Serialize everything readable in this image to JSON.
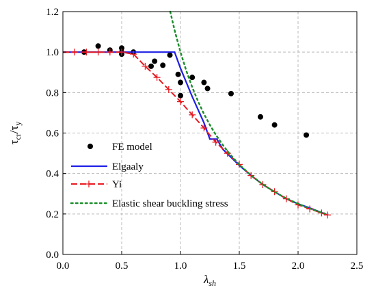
{
  "chart_data": {
    "type": "line",
    "xlabel": "λsh",
    "ylabel": "τcr/τy",
    "xlim": [
      0.0,
      2.5
    ],
    "ylim": [
      0.0,
      1.2
    ],
    "xticks": [
      "0.0",
      "0.5",
      "1.0",
      "1.5",
      "2.0",
      "2.5"
    ],
    "yticks": [
      "0.0",
      "0.2",
      "0.4",
      "0.6",
      "0.8",
      "1.0",
      "1.2"
    ],
    "grid": "dashed",
    "legend_position": "lower-left",
    "series": [
      {
        "name": "FE model",
        "kind": "scatter",
        "color": "#000000",
        "points": [
          [
            0.18,
            1.0
          ],
          [
            0.3,
            1.03
          ],
          [
            0.4,
            1.01
          ],
          [
            0.5,
            1.02
          ],
          [
            0.5,
            1.0
          ],
          [
            0.5,
            0.99
          ],
          [
            0.6,
            1.0
          ],
          [
            0.75,
            0.93
          ],
          [
            0.78,
            0.955
          ],
          [
            0.85,
            0.935
          ],
          [
            0.91,
            0.985
          ],
          [
            0.98,
            0.89
          ],
          [
            1.0,
            0.785
          ],
          [
            1.0,
            0.85
          ],
          [
            1.1,
            0.875
          ],
          [
            1.2,
            0.85
          ],
          [
            1.23,
            0.82
          ],
          [
            1.43,
            0.795
          ],
          [
            1.68,
            0.68
          ],
          [
            1.8,
            0.64
          ],
          [
            2.07,
            0.59
          ]
        ]
      },
      {
        "name": "Elgaaly",
        "kind": "line",
        "color": "#1f1fe6",
        "points": [
          [
            0.0,
            1.0
          ],
          [
            0.95,
            1.0
          ],
          [
            1.0,
            0.92
          ],
          [
            1.1,
            0.78
          ],
          [
            1.2,
            0.65
          ],
          [
            1.25,
            0.57
          ],
          [
            1.31,
            0.57
          ],
          [
            1.36,
            0.52
          ],
          [
            1.5,
            0.44
          ],
          [
            1.6,
            0.39
          ],
          [
            1.7,
            0.345
          ],
          [
            1.8,
            0.31
          ],
          [
            1.9,
            0.275
          ],
          [
            2.0,
            0.25
          ],
          [
            2.1,
            0.23
          ],
          [
            2.25,
            0.195
          ]
        ]
      },
      {
        "name": "Yi",
        "kind": "line-marker",
        "color": "#e8191f",
        "points": [
          [
            0.0,
            1.0
          ],
          [
            0.1,
            1.0
          ],
          [
            0.2,
            1.0
          ],
          [
            0.3,
            1.0
          ],
          [
            0.4,
            1.0
          ],
          [
            0.5,
            1.0
          ],
          [
            0.6,
            0.99
          ],
          [
            0.7,
            0.93
          ],
          [
            0.8,
            0.875
          ],
          [
            0.9,
            0.815
          ],
          [
            1.0,
            0.755
          ],
          [
            1.1,
            0.69
          ],
          [
            1.2,
            0.625
          ],
          [
            1.3,
            0.555
          ],
          [
            1.4,
            0.5
          ],
          [
            1.5,
            0.445
          ],
          [
            1.6,
            0.39
          ],
          [
            1.7,
            0.345
          ],
          [
            1.8,
            0.31
          ],
          [
            1.9,
            0.275
          ],
          [
            2.0,
            0.245
          ],
          [
            2.1,
            0.225
          ],
          [
            2.2,
            0.205
          ],
          [
            2.25,
            0.195
          ]
        ]
      },
      {
        "name": "Elastic shear buckling stress",
        "kind": "dotted-line",
        "color": "#1a8f2a",
        "points": [
          [
            0.913,
            1.2
          ],
          [
            0.95,
            1.108
          ],
          [
            1.0,
            1.0
          ],
          [
            1.05,
            0.907
          ],
          [
            1.1,
            0.826
          ],
          [
            1.15,
            0.756
          ],
          [
            1.2,
            0.694
          ],
          [
            1.25,
            0.64
          ],
          [
            1.3,
            0.592
          ],
          [
            1.35,
            0.549
          ],
          [
            1.4,
            0.51
          ],
          [
            1.45,
            0.476
          ],
          [
            1.5,
            0.444
          ],
          [
            1.6,
            0.391
          ],
          [
            1.7,
            0.346
          ],
          [
            1.8,
            0.309
          ],
          [
            1.9,
            0.277
          ],
          [
            2.0,
            0.25
          ],
          [
            2.1,
            0.227
          ],
          [
            2.2,
            0.207
          ],
          [
            2.25,
            0.198
          ]
        ]
      }
    ]
  }
}
